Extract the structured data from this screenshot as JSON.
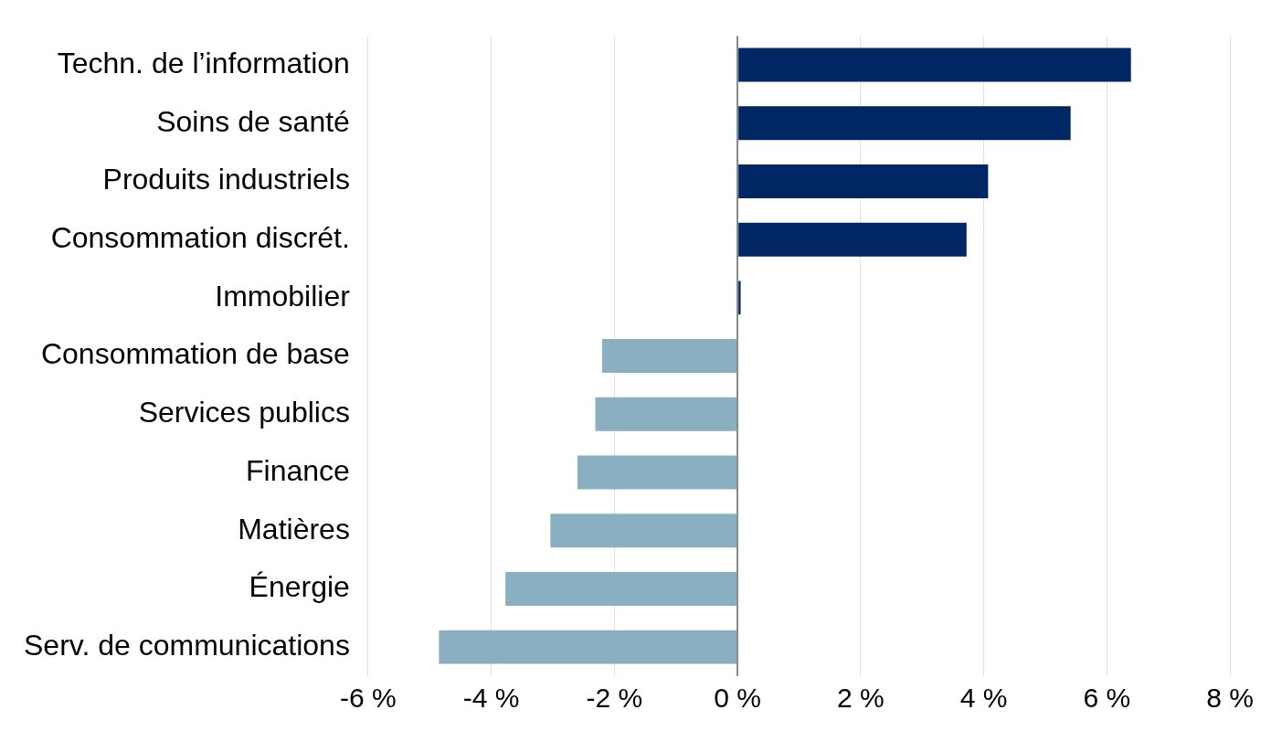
{
  "chart_data": {
    "type": "bar",
    "orientation": "horizontal",
    "categories": [
      "Techn. de l’information",
      "Soins de santé",
      "Produits industriels",
      "Consommation discrét.",
      "Immobilier",
      "Consommation de base",
      "Services publics",
      "Finance",
      "Matières",
      "Énergie",
      "Serv. de communications"
    ],
    "values": [
      6.39,
      5.41,
      4.07,
      3.72,
      0.05,
      -2.2,
      -2.31,
      -2.6,
      -3.04,
      -3.77,
      -4.85
    ],
    "colors": [
      "#002663",
      "#002663",
      "#002663",
      "#002663",
      "#002663",
      "#8aafc0",
      "#8aafc0",
      "#8aafc0",
      "#8aafc0",
      "#8aafc0",
      "#8aafc0"
    ],
    "xlim": [
      -6,
      8
    ],
    "xticks": [
      {
        "value": -6,
        "label": "-6 %"
      },
      {
        "value": -4,
        "label": "-4 %"
      },
      {
        "value": -2,
        "label": "-2 %"
      },
      {
        "value": 0,
        "label": "0 %"
      },
      {
        "value": 2,
        "label": "2 %"
      },
      {
        "value": 4,
        "label": "4 %"
      },
      {
        "value": 6,
        "label": "6 %"
      },
      {
        "value": 8,
        "label": "8 %"
      }
    ],
    "grid": true
  }
}
